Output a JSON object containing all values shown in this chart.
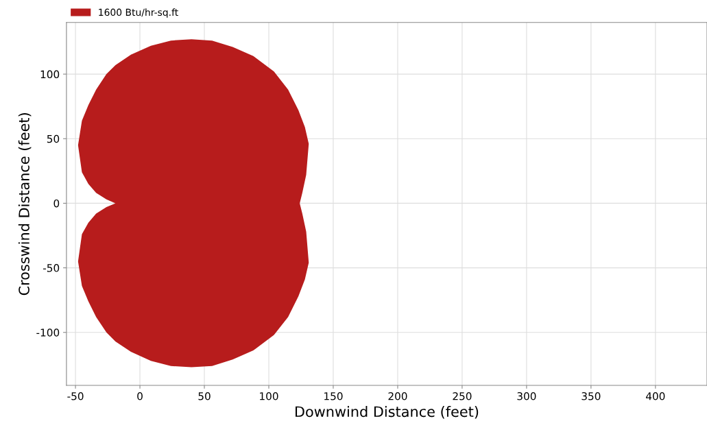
{
  "chart_data": {
    "type": "area",
    "xlabel": "Downwind Distance (feet)",
    "ylabel": "Crosswind Distance (feet)",
    "xlim": [
      -57,
      440
    ],
    "ylim": [
      -141,
      140
    ],
    "xticks": [
      -50,
      0,
      50,
      100,
      150,
      200,
      250,
      300,
      350,
      400
    ],
    "yticks": [
      -100,
      -50,
      0,
      50,
      100
    ],
    "grid": true,
    "legend": "top left",
    "series": [
      {
        "name": "1600 Btu/hr-sq.ft",
        "color": "#b71c1c",
        "x": [
          -19,
          -26,
          -34,
          -40,
          -45,
          -48,
          -45,
          -40,
          -34,
          -26,
          -19,
          -7,
          8.5,
          24,
          40,
          56,
          72,
          88,
          104,
          115,
          123,
          128,
          131,
          129,
          126,
          124,
          126,
          129,
          131,
          128,
          123,
          115,
          104,
          88,
          72,
          56,
          40,
          24,
          8.5,
          -7,
          -19,
          -26,
          -34,
          -40,
          -45,
          -48,
          -45,
          -40,
          -34,
          -26
        ],
        "values": [
          0,
          3,
          8,
          15,
          24,
          45,
          64,
          76,
          88,
          100,
          107,
          115,
          122,
          126,
          127,
          126,
          121,
          114,
          102,
          88,
          72,
          59,
          46,
          22,
          8,
          0,
          -8,
          -22,
          -46,
          -59,
          -72,
          -88,
          -102,
          -114,
          -121,
          -126,
          -127,
          -126,
          -122,
          -115,
          -107,
          -100,
          -88,
          -76,
          -64,
          -45,
          -24,
          -15,
          -8,
          -3
        ]
      }
    ]
  }
}
